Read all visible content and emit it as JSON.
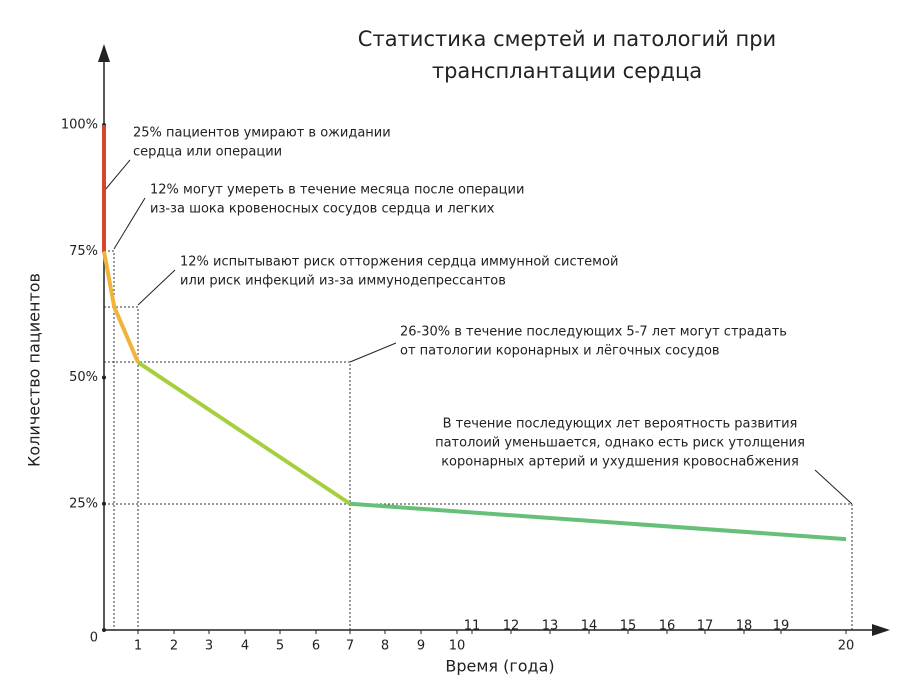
{
  "chart_data": {
    "type": "line",
    "title": [
      "Статистика смертей и патологий при",
      "трансплантации сердца"
    ],
    "xlabel": "Время (года)",
    "ylabel": "Количество пациентов",
    "xlim": [
      0,
      20
    ],
    "xticks": [
      1,
      2,
      3,
      4,
      5,
      6,
      7,
      8,
      9,
      10,
      11,
      12,
      13,
      14,
      15,
      16,
      17,
      18,
      19,
      20
    ],
    "ylim": [
      0,
      100
    ],
    "yticks": [
      {
        "value": 0,
        "label": "0"
      },
      {
        "value": 25,
        "label": "25%"
      },
      {
        "value": 50,
        "label": "50%"
      },
      {
        "value": 75,
        "label": "75%"
      },
      {
        "value": 100,
        "label": "100%"
      }
    ],
    "series": [
      {
        "color": "#d9452b",
        "x": [
          0,
          0
        ],
        "values": [
          100,
          75
        ]
      },
      {
        "color": "#f0b43c",
        "x": [
          0,
          0.3,
          1
        ],
        "values": [
          75,
          64,
          53
        ]
      },
      {
        "color": "#a6cf3e",
        "x": [
          1,
          7
        ],
        "values": [
          53,
          25
        ]
      },
      {
        "color": "#66c07a",
        "x": [
          7,
          20
        ],
        "values": [
          25,
          18
        ]
      }
    ],
    "annotations": [
      [
        "25% пациентов умирают в ожидании",
        "сердца или операции"
      ],
      [
        "12% могут умереть в течение месяца после операции",
        "из-за шока кровеносных сосудов сердца и легких"
      ],
      [
        "12% испытывают риск отторжения сердца иммунной системой",
        "или риск инфекций из-за иммунодепрессантов"
      ],
      [
        "26-30% в течение последующих 5-7 лет могут страдать",
        "от патологии коронарных и лёгочных сосудов"
      ],
      [
        "В течение последующих лет вероятность развития",
        "патолоий уменьшается, однако есть риск утолщения",
        "коронарных артерий и ухудшения кровоснабжения"
      ]
    ]
  }
}
